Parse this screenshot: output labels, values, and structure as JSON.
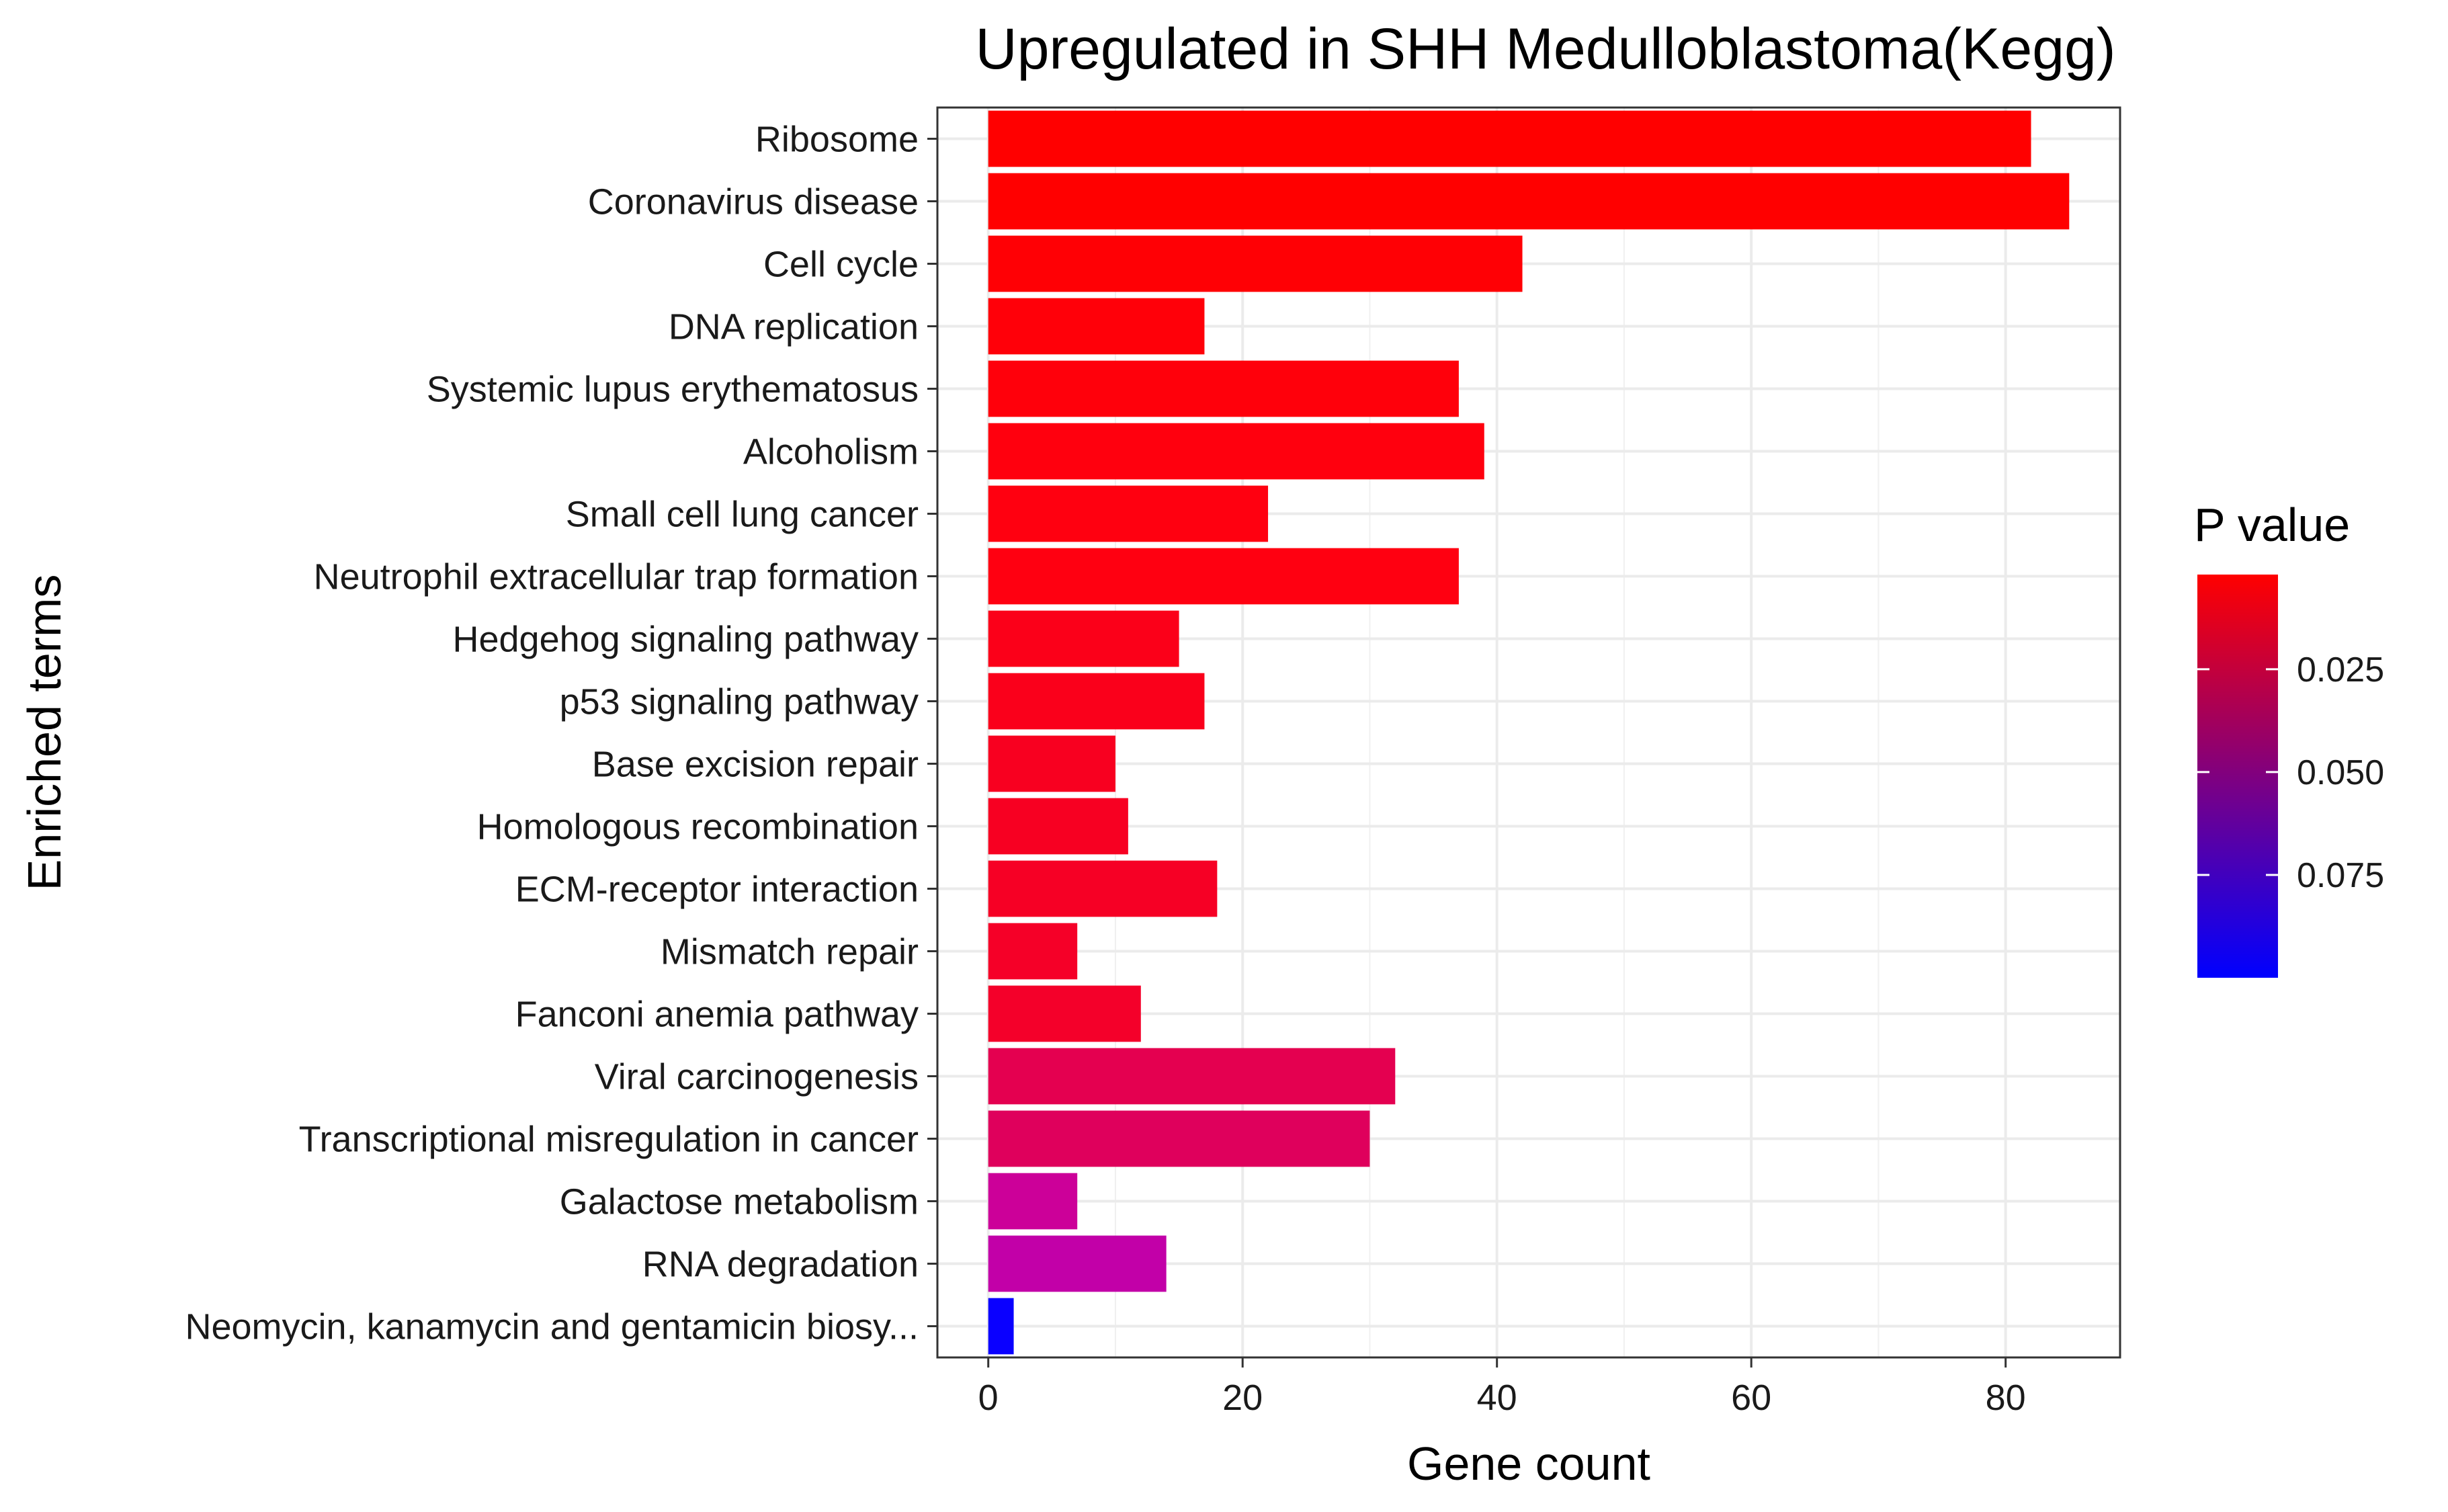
{
  "chart_data": {
    "type": "bar",
    "orientation": "horizontal",
    "title": "Upregulated in SHH Medulloblastoma(Kegg)",
    "xlabel": "Gene count",
    "ylabel": "Enriched terms",
    "xlim": [
      -4,
      89
    ],
    "x_ticks": [
      0,
      20,
      40,
      60,
      80
    ],
    "grid": true,
    "legend": {
      "title": "P value",
      "placement": "right",
      "type": "colorbar",
      "range": [
        0.002,
        0.1
      ],
      "ticks": [
        0.025,
        0.05,
        0.075
      ],
      "tick_labels": [
        "0.025",
        "0.050",
        "0.075"
      ],
      "color_low": "#FF0000",
      "color_high": "#0000FF"
    },
    "categories": [
      "Ribosome",
      "Coronavirus disease",
      "Cell cycle",
      "DNA replication",
      "Systemic lupus erythematosus",
      "Alcoholism",
      "Small cell lung cancer",
      "Neutrophil extracellular trap formation",
      "Hedgehog signaling pathway",
      "p53 signaling pathway",
      "Base excision repair",
      "Homologous recombination",
      "ECM-receptor interaction",
      "Mismatch repair",
      "Fanconi anemia pathway",
      "Viral carcinogenesis",
      "Transcriptional misregulation in cancer",
      "Galactose metabolism",
      "RNA degradation",
      "Neomycin, kanamycin and gentamicin biosy..."
    ],
    "values": [
      82,
      85,
      42,
      17,
      37,
      39,
      22,
      37,
      15,
      17,
      10,
      11,
      18,
      7,
      12,
      32,
      30,
      7,
      14,
      2
    ],
    "colors": [
      "#FF0000",
      "#FF0000",
      "#FF0005",
      "#FF0009",
      "#FF000B",
      "#FF000E",
      "#FF0010",
      "#FF0011",
      "#FB0019",
      "#FA001B",
      "#F80020",
      "#F70022",
      "#F60025",
      "#F50028",
      "#F4002A",
      "#E40050",
      "#DF005C",
      "#CC0099",
      "#C200A8",
      "#0A00FF"
    ]
  }
}
